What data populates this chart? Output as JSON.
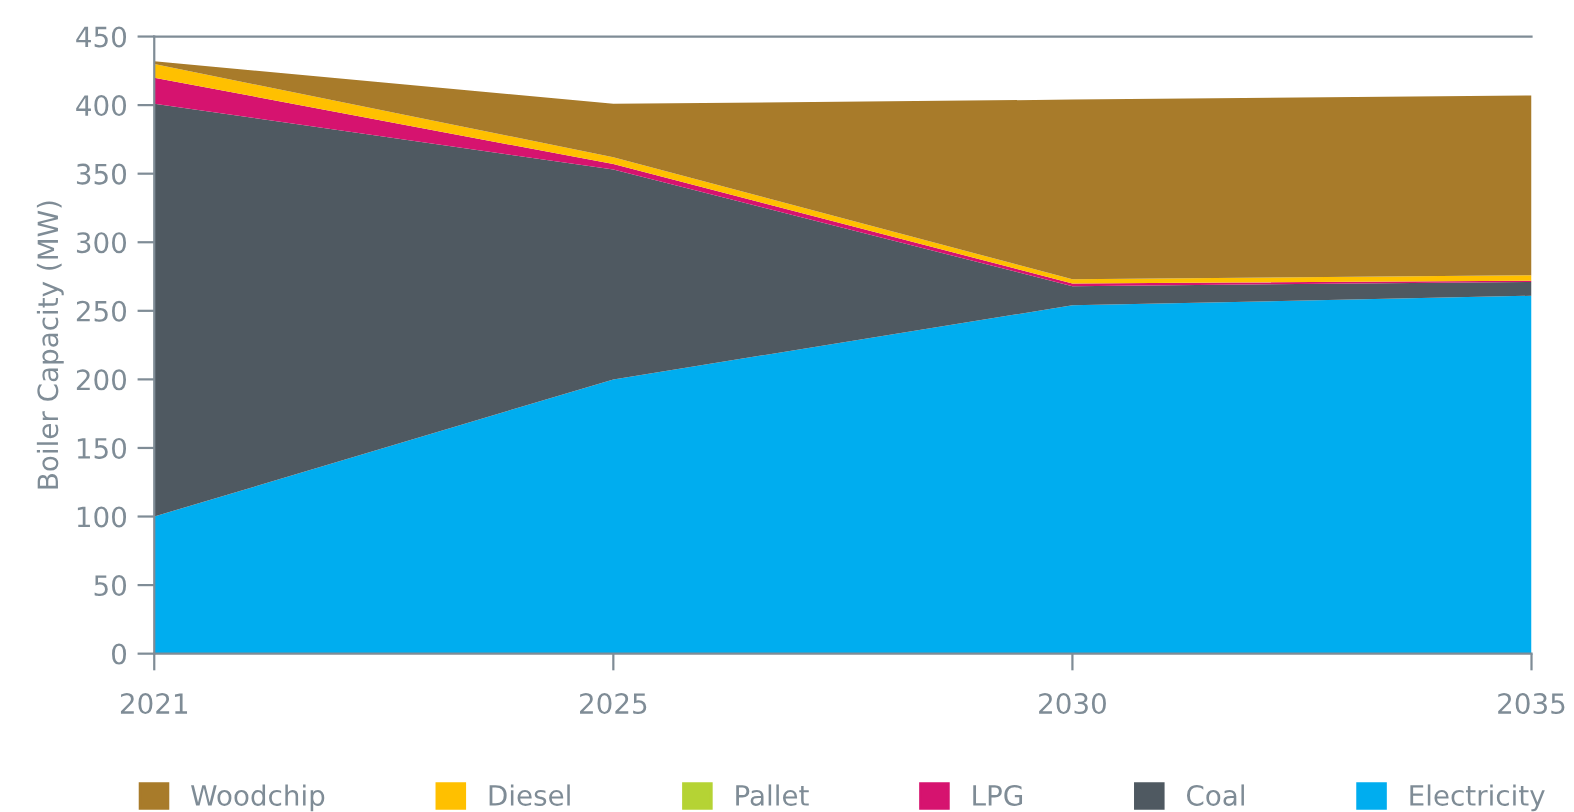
{
  "chart_data": {
    "type": "area",
    "stacked": true,
    "ylabel": "Boiler Capacity (MW)",
    "categories": [
      "2021",
      "2025",
      "2030",
      "2035"
    ],
    "series": [
      {
        "name": "Electricity",
        "color": "#00adef",
        "values": [
          100,
          200,
          254,
          261
        ]
      },
      {
        "name": "Coal",
        "color": "#4f5961",
        "values": [
          301,
          153,
          14,
          10
        ]
      },
      {
        "name": "LPG",
        "color": "#d6136f",
        "values": [
          19,
          4,
          2,
          1
        ]
      },
      {
        "name": "Pallet",
        "color": "#b5d334",
        "values": [
          null,
          null,
          null,
          null
        ]
      },
      {
        "name": "Diesel",
        "color": "#ffc000",
        "values": [
          10,
          5,
          3,
          4
        ]
      },
      {
        "name": "Woodchip",
        "color": "#a87b2a",
        "values": [
          2,
          39,
          131,
          131
        ]
      }
    ],
    "ylim": [
      0,
      450
    ],
    "yticks": [
      0,
      50,
      100,
      150,
      200,
      250,
      300,
      350,
      400,
      450
    ],
    "grid": false,
    "legend": "bottom"
  }
}
